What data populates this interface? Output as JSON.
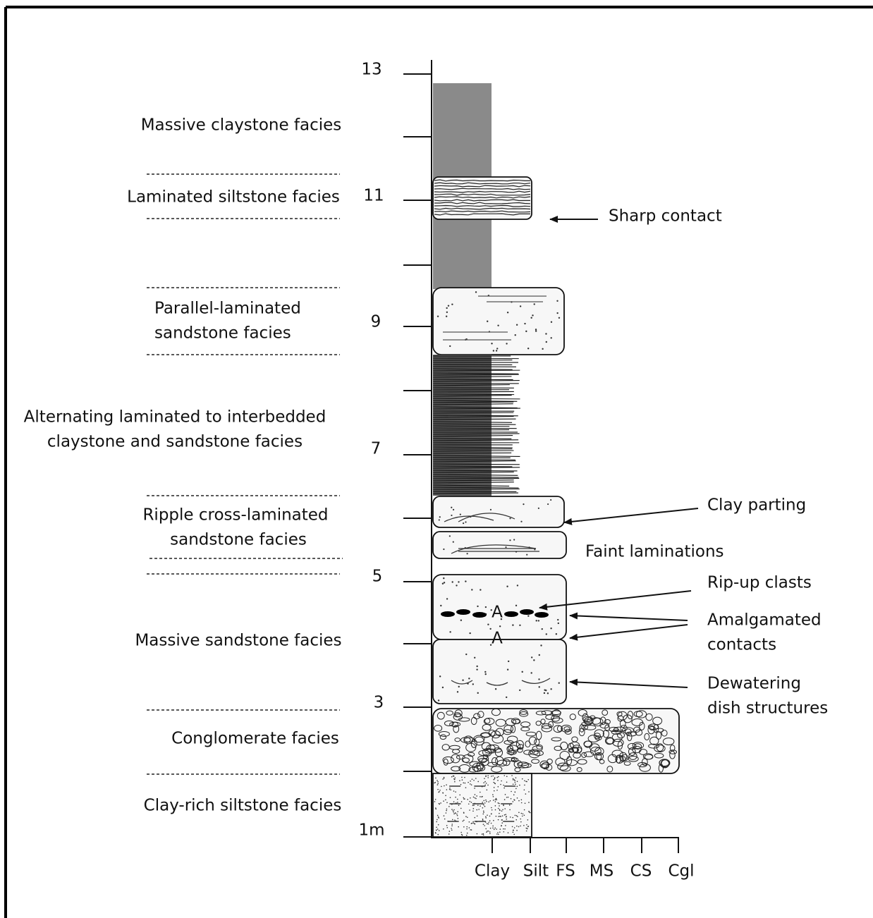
{
  "depth_labels": [
    "13",
    "11",
    "9",
    "7",
    "5",
    "3",
    "1m"
  ],
  "grain_size_labels": [
    "Clay",
    "Silt",
    "FS",
    "MS",
    "CS",
    "Cgl"
  ],
  "facies": [
    {
      "lines": [
        "Massive claystone facies"
      ]
    },
    {
      "lines": [
        "Laminated siltstone facies"
      ]
    },
    {
      "lines": [
        "Parallel-laminated",
        "sandstone facies"
      ]
    },
    {
      "lines": [
        "Alternating laminated to interbedded",
        "claystone  and sandstone facies"
      ]
    },
    {
      "lines": [
        "Ripple cross-laminated",
        "sandstone facies"
      ]
    },
    {
      "lines": [
        "Massive sandstone facies"
      ]
    },
    {
      "lines": [
        "Conglomerate facies"
      ]
    },
    {
      "lines": [
        "Clay-rich siltstone facies"
      ]
    }
  ],
  "annotations": [
    {
      "lines": [
        "Sharp contact"
      ]
    },
    {
      "lines": [
        "Clay parting"
      ]
    },
    {
      "lines": [
        "Faint laminations"
      ]
    },
    {
      "lines": [
        "Rip-up clasts"
      ]
    },
    {
      "lines": [
        "Amalgamated",
        "contacts"
      ]
    },
    {
      "lines": [
        "Dewatering",
        "dish structures"
      ]
    }
  ],
  "contact_labels": [
    "A",
    "A"
  ]
}
